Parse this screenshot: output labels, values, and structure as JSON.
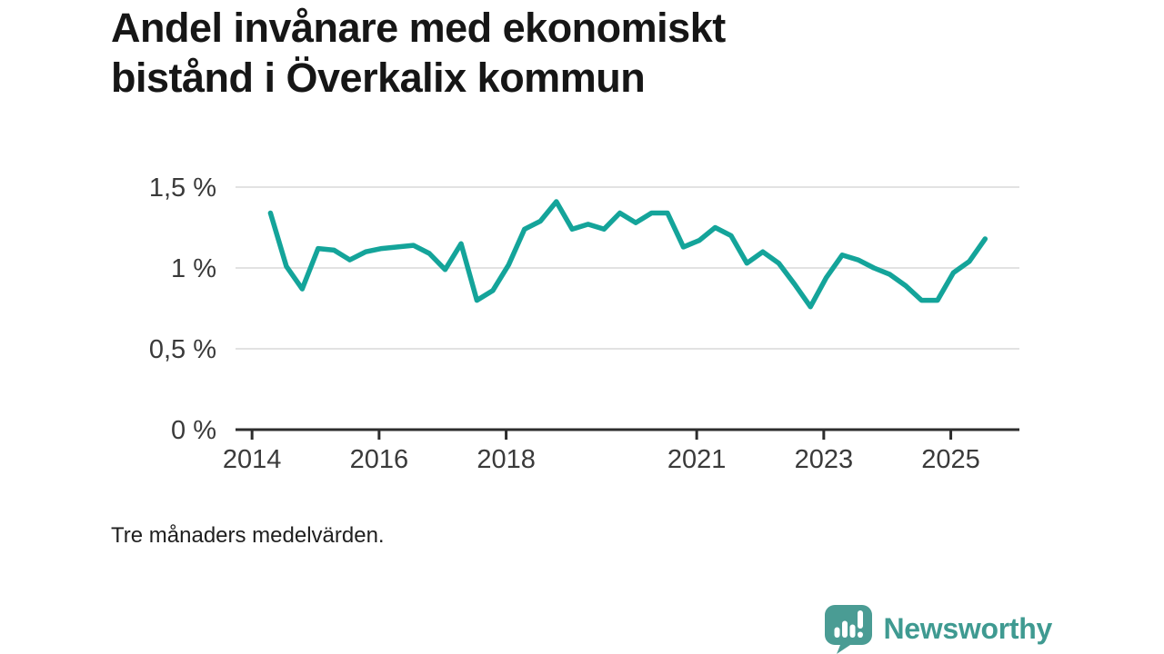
{
  "title": {
    "line1": "Andel invånare med ekonomiskt",
    "line2": "bistånd i Överkalix kommun"
  },
  "footnote": "Tre månaders medelvärden.",
  "branding": {
    "name": "Newsworthy",
    "logo_icon": "speech-bubble-bar-chart-exclamation",
    "logo_color": "#4a9c94",
    "text_color": "#3f9a91"
  },
  "colors": {
    "line": "#14a49a",
    "grid": "#e2e2e2",
    "axis": "#2d2d2d",
    "tick_label": "#3a3a3a",
    "title": "#161616"
  },
  "chart_data": {
    "type": "line",
    "title": "Andel invånare med ekonomiskt bistånd i Överkalix kommun",
    "subtitle": "Tre månaders medelvärden.",
    "unit": "%",
    "grid": "horizontal-only",
    "legend": "none",
    "xlim": [
      2013.74,
      2026.08
    ],
    "ylim": [
      0,
      1.5
    ],
    "x_ticks": [
      {
        "value": 2014,
        "label": "2014"
      },
      {
        "value": 2016,
        "label": "2016"
      },
      {
        "value": 2018,
        "label": "2018"
      },
      {
        "value": 2021,
        "label": "2021"
      },
      {
        "value": 2023,
        "label": "2023"
      },
      {
        "value": 2025,
        "label": "2025"
      }
    ],
    "y_ticks": [
      {
        "value": 0,
        "label": "0 %"
      },
      {
        "value": 0.5,
        "label": "0,5 %"
      },
      {
        "value": 1,
        "label": "1 %"
      },
      {
        "value": 1.5,
        "label": "1,5 %"
      }
    ],
    "x": [
      2014.29,
      2014.54,
      2014.79,
      2015.04,
      2015.29,
      2015.54,
      2015.79,
      2016.04,
      2016.29,
      2016.54,
      2016.79,
      2017.04,
      2017.29,
      2017.54,
      2017.79,
      2018.04,
      2018.29,
      2018.54,
      2018.79,
      2019.04,
      2019.29,
      2019.54,
      2019.79,
      2020.04,
      2020.29,
      2020.54,
      2020.79,
      2021.04,
      2021.29,
      2021.54,
      2021.79,
      2022.04,
      2022.29,
      2022.54,
      2022.79,
      2023.04,
      2023.29,
      2023.54,
      2023.79,
      2024.04,
      2024.29,
      2024.54,
      2024.79,
      2025.04,
      2025.29,
      2025.54
    ],
    "values": [
      1.34,
      1.01,
      0.87,
      1.12,
      1.11,
      1.05,
      1.1,
      1.12,
      1.13,
      1.14,
      1.09,
      0.99,
      1.15,
      0.8,
      0.86,
      1.02,
      1.24,
      1.29,
      1.41,
      1.24,
      1.27,
      1.24,
      1.34,
      1.28,
      1.34,
      1.34,
      1.13,
      1.17,
      1.25,
      1.2,
      1.03,
      1.1,
      1.03,
      0.9,
      0.76,
      0.94,
      1.08,
      1.05,
      1.0,
      0.96,
      0.89,
      0.8,
      0.8,
      0.97,
      1.04,
      1.18
    ]
  }
}
